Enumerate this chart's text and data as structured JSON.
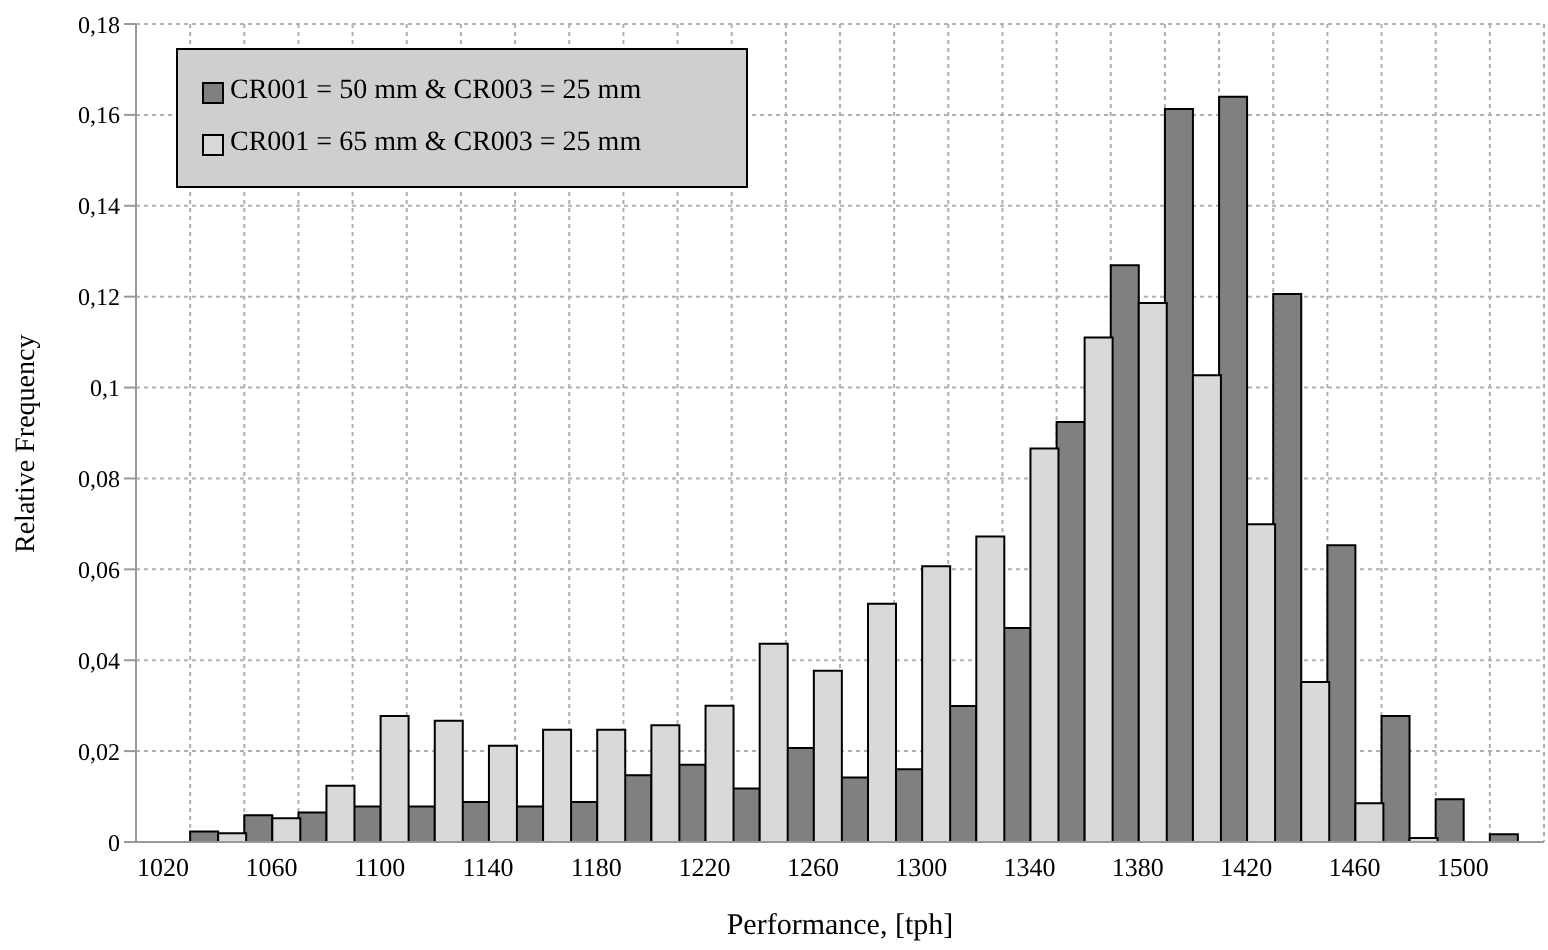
{
  "chart_data": {
    "type": "bar",
    "xlabel": "Performance, [tph]",
    "ylabel": "Relative Frequency",
    "categories": [
      "1020",
      null,
      "1060",
      null,
      "1100",
      null,
      "1140",
      null,
      "1180",
      null,
      "1220",
      null,
      "1260",
      null,
      "1300",
      null,
      "1340",
      null,
      "1380",
      null,
      "1420",
      null,
      "1460",
      null,
      "1500",
      null
    ],
    "series": [
      {
        "name": "CR001 = 50 mm & CR003 = 25 mm",
        "color": "#808080",
        "values": [
          0,
          0.0023,
          0.0059,
          0.0065,
          0.0078,
          0.0078,
          0.0088,
          0.0078,
          0.0088,
          0.0147,
          0.017,
          0.0118,
          0.0207,
          0.0142,
          0.016,
          0.0299,
          0.0471,
          0.0924,
          0.1269,
          0.1613,
          0.164,
          0.1206,
          0.0653,
          0.0277,
          0.0094,
          0.0017
        ]
      },
      {
        "name": "CR001 = 65 mm & CR003 = 25 mm",
        "color": "#d9d9d9",
        "values": [
          0,
          0.0019,
          0.0052,
          0.0124,
          0.0277,
          0.0267,
          0.0212,
          0.0247,
          0.0247,
          0.0257,
          0.03,
          0.0436,
          0.0377,
          0.0524,
          0.0607,
          0.0672,
          0.0866,
          0.111,
          0.1186,
          0.1027,
          0.0699,
          0.0352,
          0.0085,
          0.0009,
          0,
          0
        ]
      }
    ],
    "ylim": [
      0,
      0.18
    ],
    "yticks": [
      0,
      {
        "value": 0.02,
        "label": "0,02"
      },
      {
        "value": 0.04,
        "label": "0,04"
      },
      {
        "value": 0.06,
        "label": "0,06"
      },
      {
        "value": 0.08,
        "label": "0,08"
      },
      {
        "value": 0.1,
        "label": "0,1"
      },
      {
        "value": 0.12,
        "label": "0,12"
      },
      {
        "value": 0.14,
        "label": "0,14"
      },
      {
        "value": 0.16,
        "label": "0,16"
      },
      {
        "value": 0.18,
        "label": "0,18"
      }
    ],
    "grid": true,
    "legend": "top left"
  }
}
